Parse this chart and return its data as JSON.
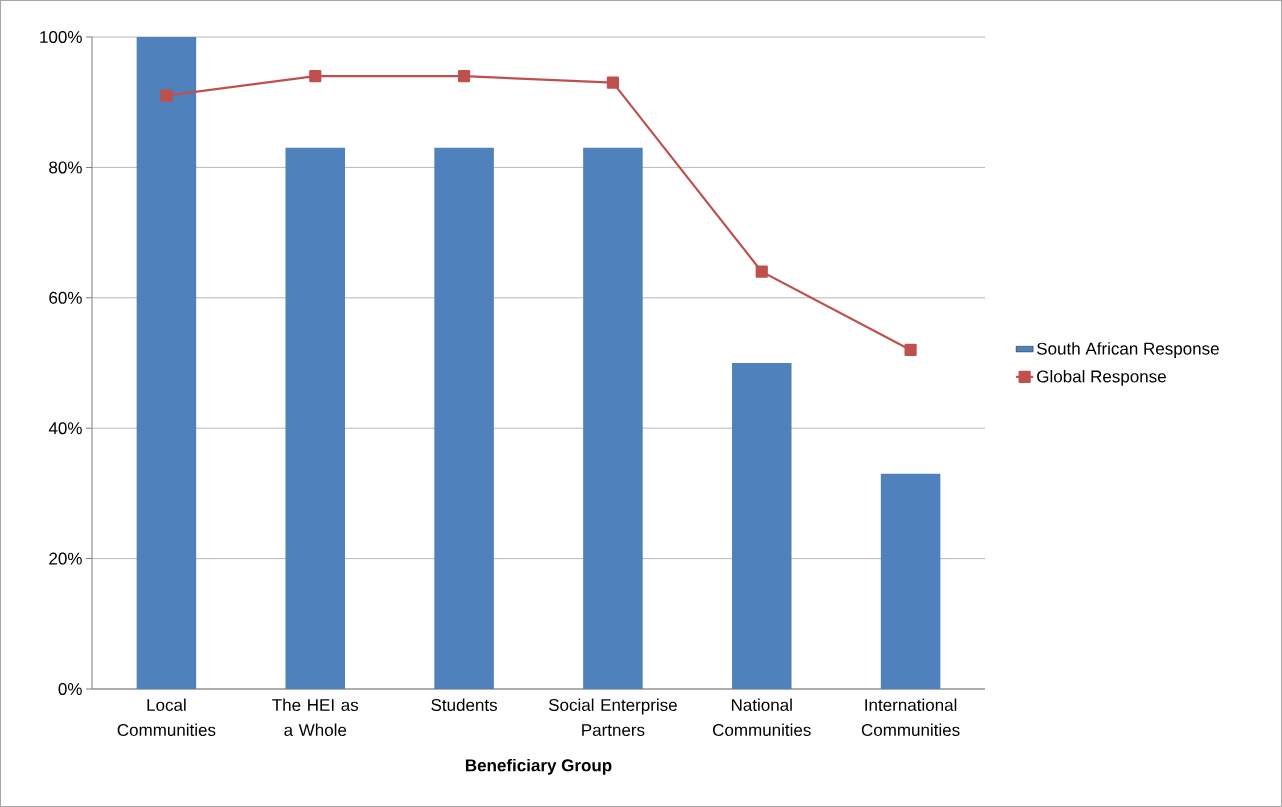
{
  "chart_data": {
    "type": "bar",
    "xlabel": "Beneficiary Group",
    "categories": [
      "Local Communities",
      "The HEI as a Whole",
      "Students",
      "Social Enterprise Partners",
      "National Communities",
      "International Communities"
    ],
    "series": [
      {
        "name": "South African Response",
        "color": "#4f81bd",
        "values": [
          100,
          83,
          83,
          83,
          50,
          33
        ]
      },
      {
        "name": "Global Response",
        "type": "line",
        "color": "#c0504d",
        "marker": "square",
        "line_style": "solid",
        "values": [
          91,
          94,
          94,
          93,
          64,
          52
        ]
      }
    ],
    "ylim": [
      0,
      100
    ],
    "yticks": [
      {
        "value": 0,
        "label": "0%"
      },
      {
        "value": 20,
        "label": "20%"
      },
      {
        "value": 40,
        "label": "40%"
      },
      {
        "value": 60,
        "label": "60%"
      },
      {
        "value": 80,
        "label": "80%"
      },
      {
        "value": 100,
        "label": "100%"
      }
    ],
    "grid": "y",
    "legend": "right"
  }
}
